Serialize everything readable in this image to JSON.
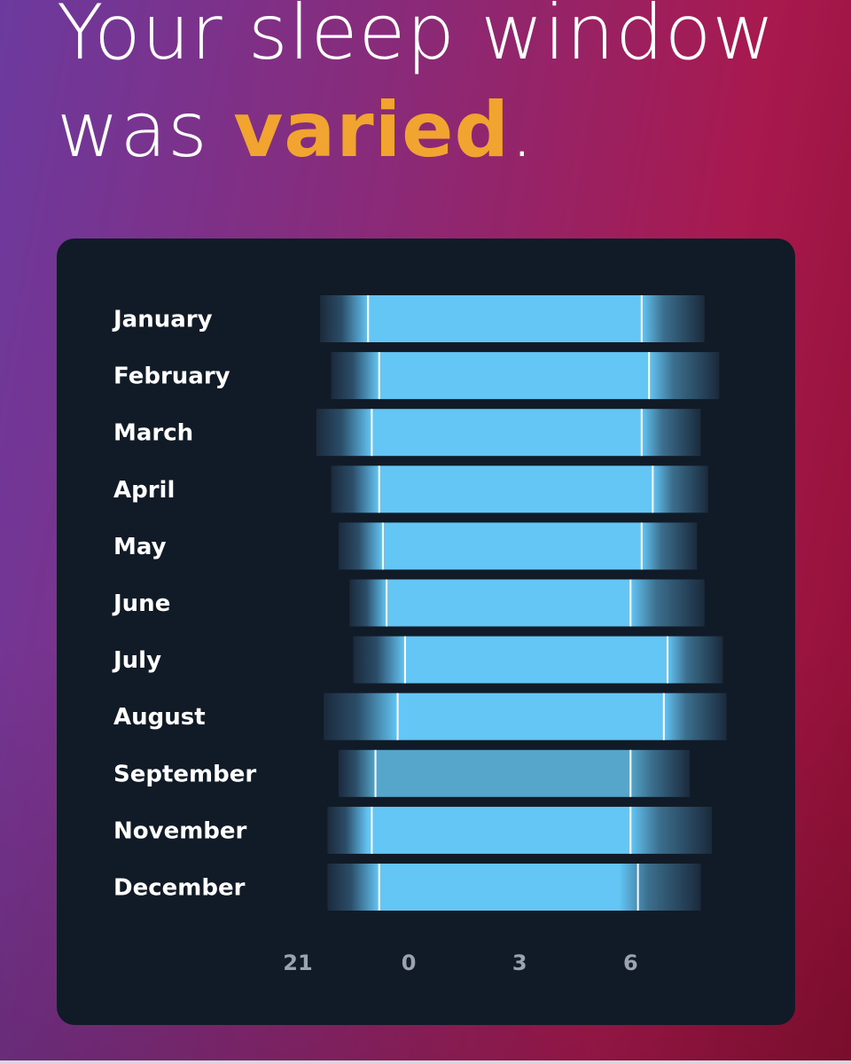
{
  "header": {
    "line1": "Your sleep window",
    "line2_prefix": "was ",
    "line2_accent": "varied",
    "line2_suffix": "."
  },
  "colors": {
    "accent": "#f2a431",
    "card": "#111a27",
    "bar_core": "#63c6f5",
    "bar_dim_core": "#55a6ca",
    "bar_edge": "#1b2a3c",
    "median_line": "#ffffff"
  },
  "chart_data": {
    "type": "range_bar",
    "title": "",
    "x_unit": "hour of day",
    "x_ticks": [
      21,
      0,
      3,
      6
    ],
    "categories": [
      "January",
      "February",
      "March",
      "April",
      "May",
      "June",
      "July",
      "August",
      "September",
      "November",
      "December"
    ],
    "series": [
      {
        "month": "January",
        "earliest_start": 21.6,
        "typical_start": 22.9,
        "typical_end": 6.3,
        "latest_end": 8.0,
        "median_start": 22.9,
        "median_end": 6.3,
        "dim": false
      },
      {
        "month": "February",
        "earliest_start": 21.9,
        "typical_start": 23.2,
        "typical_end": 6.5,
        "latest_end": 8.4,
        "median_start": 23.2,
        "median_end": 6.5,
        "dim": false
      },
      {
        "month": "March",
        "earliest_start": 21.5,
        "typical_start": 23.0,
        "typical_end": 6.3,
        "latest_end": 7.9,
        "median_start": 23.0,
        "median_end": 6.3,
        "dim": false
      },
      {
        "month": "April",
        "earliest_start": 21.9,
        "typical_start": 23.2,
        "typical_end": 6.6,
        "latest_end": 8.1,
        "median_start": 23.2,
        "median_end": 6.6,
        "dim": false
      },
      {
        "month": "May",
        "earliest_start": 22.1,
        "typical_start": 23.3,
        "typical_end": 6.3,
        "latest_end": 7.8,
        "median_start": 23.3,
        "median_end": 6.3,
        "dim": false
      },
      {
        "month": "June",
        "earliest_start": 22.4,
        "typical_start": 23.4,
        "typical_end": 6.0,
        "latest_end": 8.0,
        "median_start": 23.4,
        "median_end": 6.0,
        "dim": false
      },
      {
        "month": "July",
        "earliest_start": 22.5,
        "typical_start": 23.9,
        "typical_end": 7.0,
        "latest_end": 8.5,
        "median_start": 23.9,
        "median_end": 7.0,
        "dim": false
      },
      {
        "month": "August",
        "earliest_start": 21.7,
        "typical_start": 23.7,
        "typical_end": 6.9,
        "latest_end": 8.6,
        "median_start": 23.7,
        "median_end": 6.9,
        "dim": false
      },
      {
        "month": "September",
        "earliest_start": 22.1,
        "typical_start": 23.1,
        "typical_end": 6.0,
        "latest_end": 7.6,
        "median_start": 23.1,
        "median_end": 6.0,
        "dim": true
      },
      {
        "month": "November",
        "earliest_start": 21.8,
        "typical_start": 22.9,
        "typical_end": 6.0,
        "latest_end": 8.2,
        "median_start": 23.0,
        "median_end": 6.0,
        "dim": false
      },
      {
        "month": "December",
        "earliest_start": 21.8,
        "typical_start": 23.2,
        "typical_end": 5.7,
        "latest_end": 7.9,
        "median_start": 23.2,
        "median_end": 6.2,
        "dim": false
      }
    ]
  }
}
